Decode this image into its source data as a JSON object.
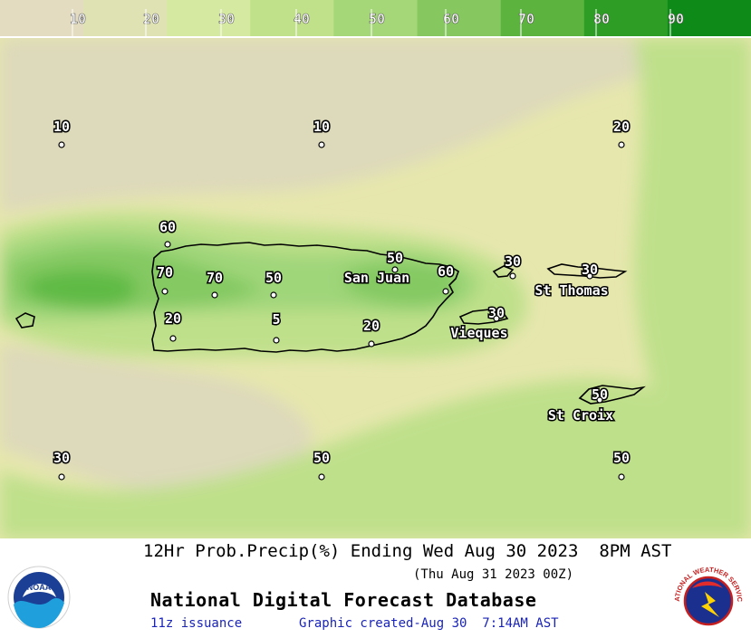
{
  "legend": {
    "labels": [
      "10",
      "20",
      "30",
      "40",
      "50",
      "60",
      "70",
      "80",
      "90"
    ],
    "colors": [
      "#e3dcc0",
      "#dfe3b4",
      "#d5e9a1",
      "#c0e08a",
      "#a5d678",
      "#86c85f",
      "#5cb43f",
      "#2e9d25",
      "#0d8a18"
    ]
  },
  "map": {
    "colors": {
      "ocean_low": "#ddd9bb",
      "low": "#e6e7ad",
      "mid": "#bfe08b",
      "high": "#a0d67a",
      "higher": "#84c962",
      "max": "#5fba45",
      "coast": "#000000"
    },
    "places": [
      {
        "name": "San Juan"
      },
      {
        "name": "St Thomas"
      },
      {
        "name": "Vieques"
      },
      {
        "name": "St Croix"
      }
    ],
    "points": [
      {
        "value": "10"
      },
      {
        "value": "10"
      },
      {
        "value": "20"
      },
      {
        "value": "60"
      },
      {
        "value": "70"
      },
      {
        "value": "70"
      },
      {
        "value": "50"
      },
      {
        "value": "50"
      },
      {
        "value": "60"
      },
      {
        "value": "30"
      },
      {
        "value": "30"
      },
      {
        "value": "20"
      },
      {
        "value": "5"
      },
      {
        "value": "20"
      },
      {
        "value": "30"
      },
      {
        "value": "50"
      },
      {
        "value": "30"
      },
      {
        "value": "50"
      },
      {
        "value": "50"
      }
    ]
  },
  "footer": {
    "title": "12Hr Prob.Precip(%) Ending Wed Aug 30 2023  8PM AST",
    "utc": "(Thu Aug 31 2023 00Z)",
    "database": "National Digital Forecast Database",
    "issuance": "11z issuance",
    "created": "Graphic created-Aug 30  7:14AM AST"
  },
  "logos": {
    "noaa_text": "NOAA",
    "nws_text": "NATIONAL WEATHER SERVICE"
  }
}
